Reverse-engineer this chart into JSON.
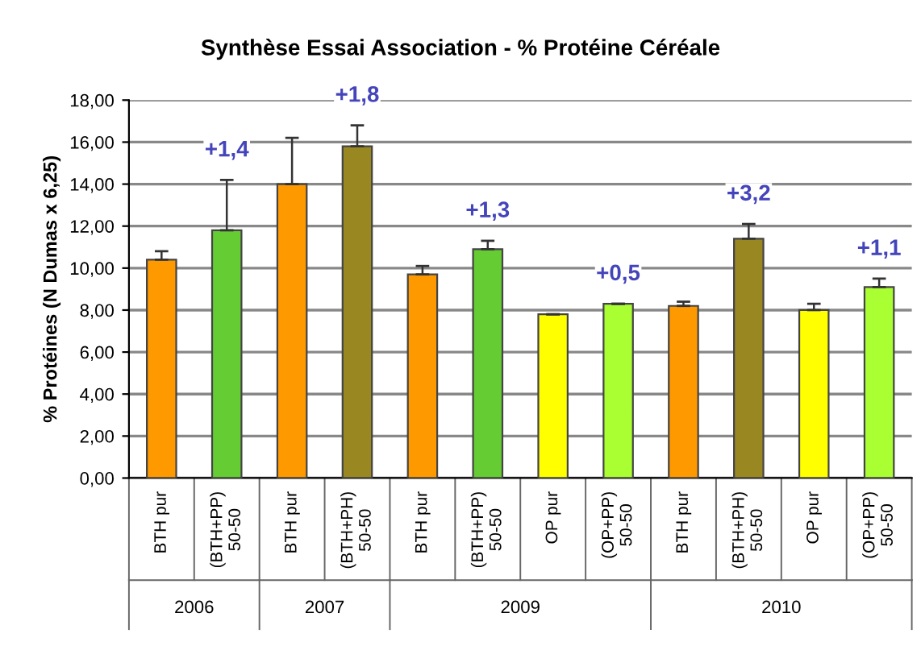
{
  "chart_data": {
    "type": "bar",
    "title": "Synthèse Essai Association - % Protéine Céréale",
    "ylabel": "% Protéines (N Dumas x 6,25)",
    "categories": [
      "BTH pur",
      "(BTH+PP)\n50-50",
      "BTH pur",
      "(BTH+PH)\n50-50",
      "BTH pur",
      "(BTH+PP)\n50-50",
      "OP pur",
      "(OP+PP)\n50-50",
      "BTH pur",
      "(BTH+PH)\n50-50",
      "OP pur",
      "(OP+PP)\n50-50"
    ],
    "values": [
      10.4,
      11.8,
      14.0,
      15.8,
      9.7,
      10.9,
      7.8,
      8.3,
      8.2,
      11.4,
      8.0,
      9.1
    ],
    "colors": [
      "#ff9900",
      "#66cc33",
      "#ff9900",
      "#998822",
      "#ff9900",
      "#66cc33",
      "#ffff00",
      "#aaff33",
      "#ff9900",
      "#998822",
      "#ffff00",
      "#aaff33"
    ],
    "errors": [
      [
        10.4,
        10.8
      ],
      [
        11.8,
        14.2
      ],
      [
        14.0,
        16.2
      ],
      [
        15.8,
        16.8
      ],
      [
        9.7,
        10.1
      ],
      [
        10.9,
        11.3
      ],
      [
        7.8,
        7.8
      ],
      [
        8.3,
        8.3
      ],
      [
        8.2,
        8.4
      ],
      [
        11.4,
        12.1
      ],
      [
        8.0,
        8.3
      ],
      [
        9.1,
        9.5
      ]
    ],
    "ylim": [
      0,
      18
    ],
    "yticks": [
      {
        "value": 0,
        "label": "0,00"
      },
      {
        "value": 2,
        "label": "2,00"
      },
      {
        "value": 4,
        "label": "4,00"
      },
      {
        "value": 6,
        "label": "6,00"
      },
      {
        "value": 8,
        "label": "8,00"
      },
      {
        "value": 10,
        "label": "10,00"
      },
      {
        "value": 12,
        "label": "12,00"
      },
      {
        "value": 14,
        "label": "14,00"
      },
      {
        "value": 16,
        "label": "16,00"
      },
      {
        "value": 18,
        "label": "18,00"
      }
    ],
    "grid": "y",
    "annotations": [
      "+1,4",
      "+1,8",
      "+1,3",
      "+0,5",
      "+3,2",
      "+1,1",
      "2006",
      "2007",
      "2009",
      "2010"
    ]
  }
}
